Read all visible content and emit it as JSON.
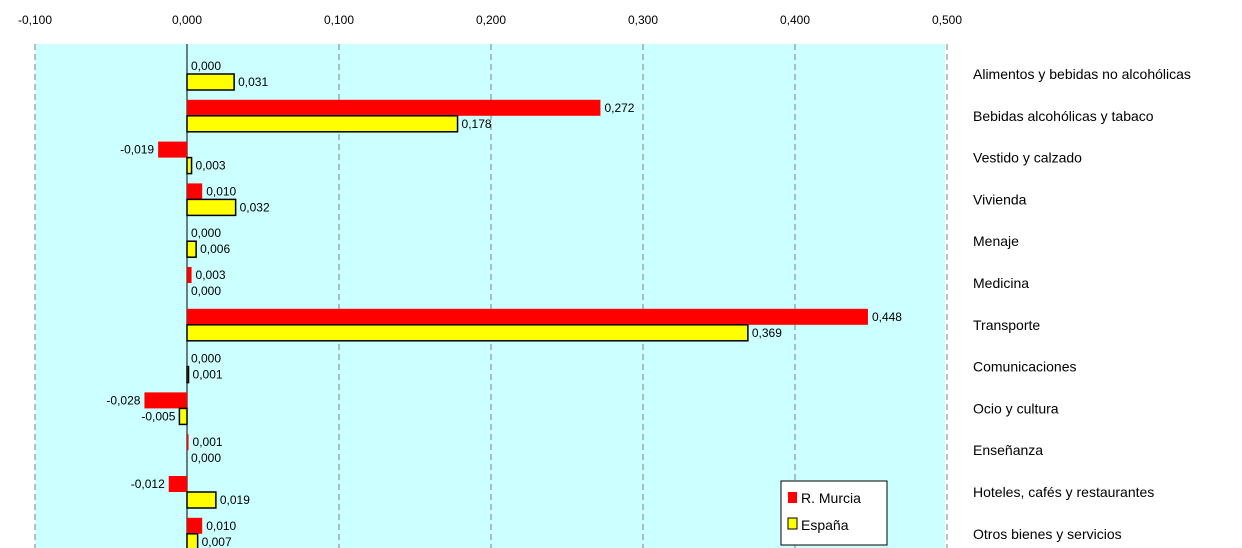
{
  "chart_data": {
    "type": "bar",
    "orientation": "horizontal",
    "title": "",
    "xlabel": "",
    "ylabel": "",
    "xlim": [
      -0.1,
      0.5
    ],
    "x_ticks": [
      -0.1,
      0.0,
      0.1,
      0.2,
      0.3,
      0.4,
      0.5
    ],
    "x_tick_labels": [
      "-0,100",
      "0,000",
      "0,100",
      "0,200",
      "0,300",
      "0,400",
      "0,500"
    ],
    "x_axis_position": "top",
    "grid": "vertical dashed",
    "legend_position": "bottom-right",
    "categories": [
      "Alimentos y bebidas no alcohólicas",
      "Bebidas alcohólicas y tabaco",
      "Vestido y calzado",
      "Vivienda",
      "Menaje",
      "Medicina",
      "Transporte",
      "Comunicaciones",
      "Ocio y cultura",
      "Enseñanza",
      "Hoteles, cafés y restaurantes",
      "Otros bienes y servicios"
    ],
    "series": [
      {
        "name": "R. Murcia",
        "color": "#ff0000",
        "values": [
          0.0,
          0.272,
          -0.019,
          0.01,
          0.0,
          0.003,
          0.448,
          0.0,
          -0.028,
          0.001,
          -0.012,
          0.01
        ],
        "labels": [
          "0,000",
          "0,272",
          "-0,019",
          "0,010",
          "0,000",
          "0,003",
          "0,448",
          "0,000",
          "-0,028",
          "0,001",
          "-0,012",
          "0,010"
        ]
      },
      {
        "name": "España",
        "color": "#ffff00",
        "values": [
          0.031,
          0.178,
          0.003,
          0.032,
          0.006,
          0.0,
          0.369,
          0.001,
          -0.005,
          0.0,
          0.019,
          0.007
        ],
        "labels": [
          "0,031",
          "0,178",
          "0,003",
          "0,032",
          "0,006",
          "0,000",
          "0,369",
          "0,001",
          "-0,005",
          "0,000",
          "0,019",
          "0,007"
        ]
      }
    ],
    "plot_background": "#ccffff"
  }
}
